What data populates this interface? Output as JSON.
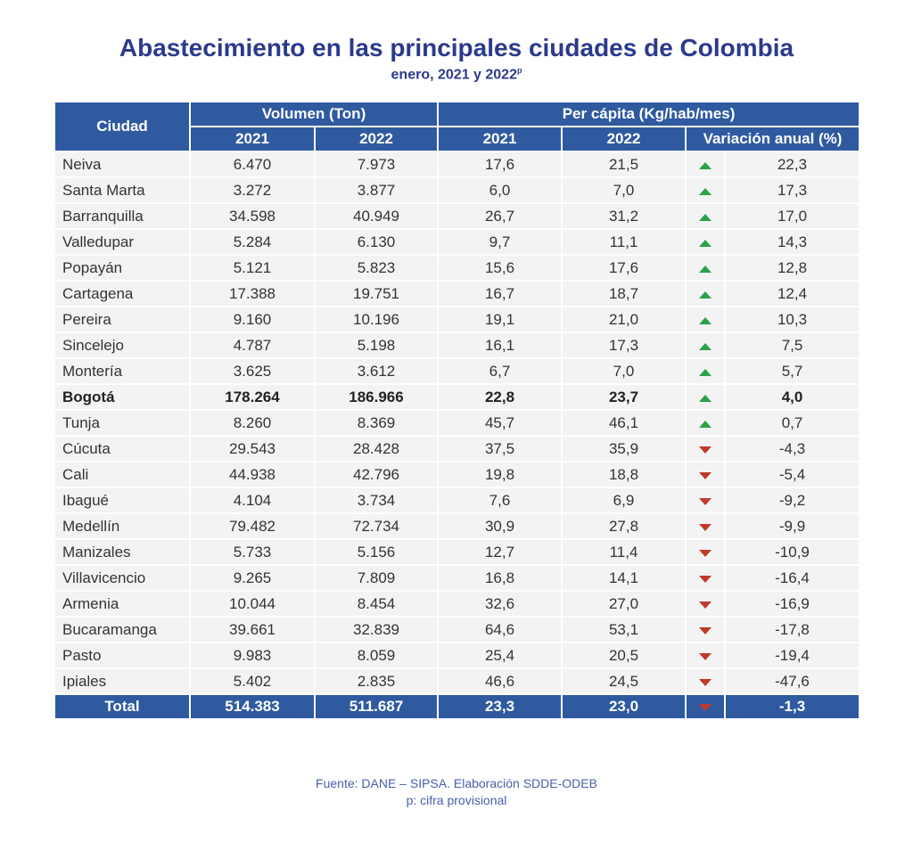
{
  "title": "Abastecimiento en las principales ciudades de Colombia",
  "subtitle": "enero, 2021 y 2022",
  "subtitle_sup": "p",
  "headers": {
    "city": "Ciudad",
    "volume": "Volumen (Ton)",
    "per_capita": "Per cápita (Kg/hab/mes)",
    "y2021": "2021",
    "y2022": "2022",
    "variation": "Variación anual (%)"
  },
  "colors": {
    "header_bg": "#2f5aa0",
    "up": "#2aa24a",
    "down": "#c0392b",
    "title": "#2b3a8c"
  },
  "rows": [
    {
      "city": "Neiva",
      "v2021": "6.470",
      "v2022": "7.973",
      "p2021": "17,6",
      "p2022": "21,5",
      "trend": "up",
      "var": "22,3"
    },
    {
      "city": "Santa Marta",
      "v2021": "3.272",
      "v2022": "3.877",
      "p2021": "6,0",
      "p2022": "7,0",
      "trend": "up",
      "var": "17,3"
    },
    {
      "city": "Barranquilla",
      "v2021": "34.598",
      "v2022": "40.949",
      "p2021": "26,7",
      "p2022": "31,2",
      "trend": "up",
      "var": "17,0"
    },
    {
      "city": "Valledupar",
      "v2021": "5.284",
      "v2022": "6.130",
      "p2021": "9,7",
      "p2022": "11,1",
      "trend": "up",
      "var": "14,3"
    },
    {
      "city": "Popayán",
      "v2021": "5.121",
      "v2022": "5.823",
      "p2021": "15,6",
      "p2022": "17,6",
      "trend": "up",
      "var": "12,8"
    },
    {
      "city": "Cartagena",
      "v2021": "17.388",
      "v2022": "19.751",
      "p2021": "16,7",
      "p2022": "18,7",
      "trend": "up",
      "var": "12,4"
    },
    {
      "city": "Pereira",
      "v2021": "9.160",
      "v2022": "10.196",
      "p2021": "19,1",
      "p2022": "21,0",
      "trend": "up",
      "var": "10,3"
    },
    {
      "city": "Sincelejo",
      "v2021": "4.787",
      "v2022": "5.198",
      "p2021": "16,1",
      "p2022": "17,3",
      "trend": "up",
      "var": "7,5"
    },
    {
      "city": "Montería",
      "v2021": "3.625",
      "v2022": "3.612",
      "p2021": "6,7",
      "p2022": "7,0",
      "trend": "up",
      "var": "5,7"
    },
    {
      "city": "Bogotá",
      "v2021": "178.264",
      "v2022": "186.966",
      "p2021": "22,8",
      "p2022": "23,7",
      "trend": "up",
      "var": "4,0",
      "bold": true
    },
    {
      "city": "Tunja",
      "v2021": "8.260",
      "v2022": "8.369",
      "p2021": "45,7",
      "p2022": "46,1",
      "trend": "up",
      "var": "0,7"
    },
    {
      "city": "Cúcuta",
      "v2021": "29.543",
      "v2022": "28.428",
      "p2021": "37,5",
      "p2022": "35,9",
      "trend": "down",
      "var": "-4,3"
    },
    {
      "city": "Cali",
      "v2021": "44.938",
      "v2022": "42.796",
      "p2021": "19,8",
      "p2022": "18,8",
      "trend": "down",
      "var": "-5,4"
    },
    {
      "city": "Ibagué",
      "v2021": "4.104",
      "v2022": "3.734",
      "p2021": "7,6",
      "p2022": "6,9",
      "trend": "down",
      "var": "-9,2"
    },
    {
      "city": "Medellín",
      "v2021": "79.482",
      "v2022": "72.734",
      "p2021": "30,9",
      "p2022": "27,8",
      "trend": "down",
      "var": "-9,9"
    },
    {
      "city": "Manizales",
      "v2021": "5.733",
      "v2022": "5.156",
      "p2021": "12,7",
      "p2022": "11,4",
      "trend": "down",
      "var": "-10,9"
    },
    {
      "city": "Villavicencio",
      "v2021": "9.265",
      "v2022": "7.809",
      "p2021": "16,8",
      "p2022": "14,1",
      "trend": "down",
      "var": "-16,4"
    },
    {
      "city": "Armenia",
      "v2021": "10.044",
      "v2022": "8.454",
      "p2021": "32,6",
      "p2022": "27,0",
      "trend": "down",
      "var": "-16,9"
    },
    {
      "city": "Bucaramanga",
      "v2021": "39.661",
      "v2022": "32.839",
      "p2021": "64,6",
      "p2022": "53,1",
      "trend": "down",
      "var": "-17,8"
    },
    {
      "city": "Pasto",
      "v2021": "9.983",
      "v2022": "8.059",
      "p2021": "25,4",
      "p2022": "20,5",
      "trend": "down",
      "var": "-19,4"
    },
    {
      "city": "Ipiales",
      "v2021": "5.402",
      "v2022": "2.835",
      "p2021": "46,6",
      "p2022": "24,5",
      "trend": "down",
      "var": "-47,6"
    }
  ],
  "total": {
    "city": "Total",
    "v2021": "514.383",
    "v2022": "511.687",
    "p2021": "23,3",
    "p2022": "23,0",
    "trend": "down",
    "var": "-1,3"
  },
  "footer": {
    "source": "Fuente: DANE – SIPSA. Elaboración SDDE-ODEB",
    "note": "p: cifra provisional"
  }
}
